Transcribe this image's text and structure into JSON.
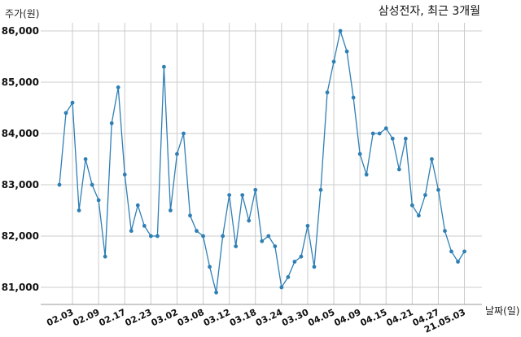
{
  "chart_data": {
    "type": "line",
    "title": "삼성전자, 최근 3개월",
    "xlabel": "날짜(일)",
    "ylabel": "주가(원)",
    "ylim": [
      80700,
      86300
    ],
    "grid": true,
    "line_color": "#2f7fb5",
    "y_ticks": [
      "81,000",
      "82,000",
      "83,000",
      "84,000",
      "85,000",
      "86,000"
    ],
    "y_tick_values": [
      81000,
      82000,
      83000,
      84000,
      85000,
      86000
    ],
    "x_ticks": [
      "02.03",
      "02.09",
      "02.17",
      "02.23",
      "03.02",
      "03.08",
      "03.12",
      "03.18",
      "03.24",
      "03.30",
      "04.05",
      "04.09",
      "04.15",
      "04.21",
      "04.27",
      "21.05.03"
    ],
    "x_tick_index": [
      2,
      6,
      10,
      14,
      18,
      22,
      26,
      30,
      34,
      38,
      42,
      46,
      50,
      54,
      58,
      62
    ],
    "values": [
      83000,
      84400,
      84600,
      82500,
      83500,
      83000,
      82700,
      81600,
      84200,
      84900,
      83200,
      82100,
      82600,
      82200,
      82000,
      82000,
      85300,
      82500,
      83600,
      84000,
      82400,
      82100,
      82000,
      81400,
      80900,
      82000,
      82800,
      81800,
      82800,
      82300,
      82900,
      81900,
      82000,
      81800,
      81000,
      81200,
      81500,
      81600,
      82200,
      81400,
      82900,
      84800,
      85400,
      86000,
      85600,
      84700,
      83600,
      83200,
      84000,
      84000,
      84100,
      83900,
      83300,
      83900,
      82600,
      82400,
      82800,
      83500,
      82900,
      82100,
      81700,
      81500,
      81700
    ]
  }
}
